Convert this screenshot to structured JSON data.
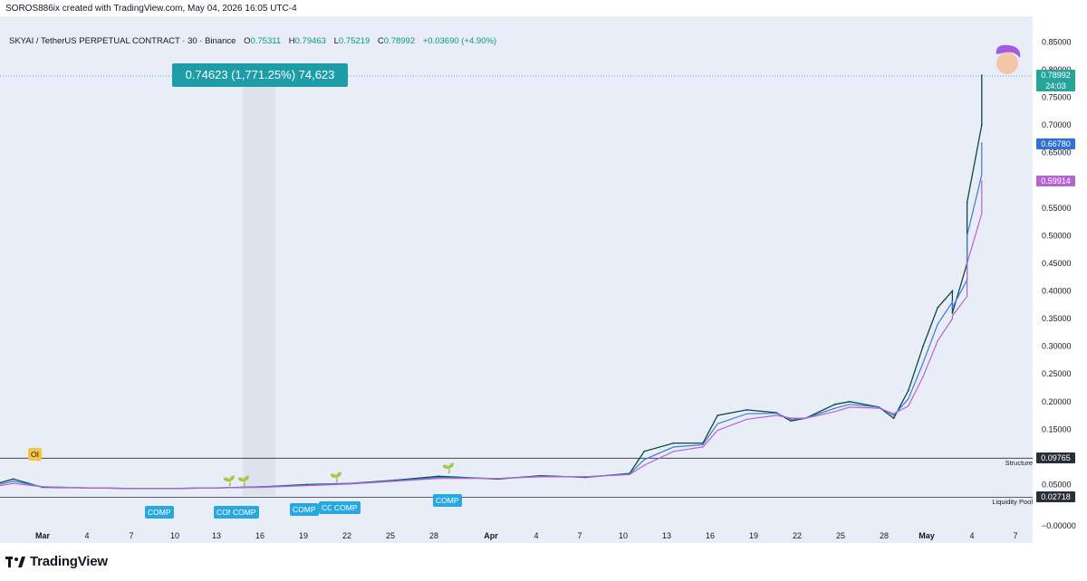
{
  "header": {
    "author_line": "SOROS886ix created with TradingView.com, May 04, 2026 16:05 UTC-4"
  },
  "legend": {
    "symbol": "SKYAI / TetherUS PERPETUAL CONTRACT · 30 · Binance",
    "o_label": "O",
    "o_value": "0.75311",
    "h_label": "H",
    "h_value": "0.79463",
    "l_label": "L",
    "l_value": "0.75219",
    "c_label": "C",
    "c_value": "0.78992",
    "change": "+0.03690 (+4.90%)"
  },
  "measure": {
    "text": "0.74623 (1,771.25%) 74,623"
  },
  "price_tags": {
    "last": "0.78992",
    "countdown": "24:03",
    "ma_fast": "0.66780",
    "ma_slow": "0.59914",
    "structure_value": "0.09765",
    "liquidity_value": "0.02718"
  },
  "horizontal_lines": {
    "structure_label": "Structure",
    "liquidity_label": "Liquidity Pool"
  },
  "badges": {
    "oi": "OI",
    "comp": [
      "COMP",
      "COMP",
      "COMP",
      "COMP",
      "COMP",
      "COMP",
      "COMP"
    ]
  },
  "footer": {
    "brand": "TradingView"
  },
  "colors": {
    "candle": "#0b4a43",
    "ma_fast": "#3d7bd9",
    "ma_slow": "#b565d0",
    "tag_last": "#26a69a",
    "tag_ma_fast": "#2f6fd6",
    "tag_ma_slow": "#b565d0",
    "tag_level": "#2a2e39",
    "measure": "#1e9ca7",
    "comp": "#29a8e0",
    "oi": "#f7c542"
  },
  "chart_data": {
    "type": "line",
    "title": "",
    "xlabel": "",
    "ylabel": "",
    "ylim": [
      0,
      0.88
    ],
    "x_tick_labels": [
      "Mar",
      "4",
      "7",
      "10",
      "13",
      "16",
      "19",
      "22",
      "25",
      "28",
      "Apr",
      "4",
      "7",
      "10",
      "13",
      "16",
      "19",
      "22",
      "25",
      "28",
      "May",
      "4",
      "7"
    ],
    "y_tick_labels": [
      "0.85000",
      "0.80000",
      "0.75000",
      "0.70000",
      "0.65000",
      "0.60000",
      "0.55000",
      "0.50000",
      "0.45000",
      "0.40000",
      "0.35000",
      "0.30000",
      "0.25000",
      "0.20000",
      "0.15000",
      "0.10000",
      "0.05000",
      "0.00000",
      "−0.00000"
    ],
    "y_ticks": [
      0.85,
      0.8,
      0.75,
      0.7,
      0.65,
      0.6,
      0.55,
      0.5,
      0.45,
      0.4,
      0.35,
      0.3,
      0.25,
      0.2,
      0.15,
      0.1,
      0.05,
      0.0
    ],
    "x_dates": [
      "2026-02-25",
      "2026-02-27",
      "2026-03-01",
      "2026-03-04",
      "2026-03-07",
      "2026-03-10",
      "2026-03-13",
      "2026-03-16",
      "2026-03-19",
      "2026-03-22",
      "2026-03-25",
      "2026-03-28",
      "2026-04-01",
      "2026-04-04",
      "2026-04-07",
      "2026-04-10",
      "2026-04-11",
      "2026-04-13",
      "2026-04-15",
      "2026-04-16",
      "2026-04-18",
      "2026-04-20",
      "2026-04-21",
      "2026-04-22",
      "2026-04-24",
      "2026-04-25",
      "2026-04-27",
      "2026-04-28",
      "2026-04-29",
      "2026-04-30",
      "2026-05-01",
      "2026-05-02",
      "2026-05-02",
      "2026-05-03",
      "2026-05-03",
      "2026-05-04",
      "2026-05-04"
    ],
    "series": [
      {
        "name": "",
        "values": [
          0.045,
          0.06,
          0.045,
          0.044,
          0.043,
          0.043,
          0.044,
          0.046,
          0.05,
          0.052,
          0.058,
          0.065,
          0.06,
          0.066,
          0.063,
          0.07,
          0.11,
          0.125,
          0.125,
          0.175,
          0.185,
          0.18,
          0.165,
          0.17,
          0.195,
          0.2,
          0.19,
          0.17,
          0.22,
          0.3,
          0.37,
          0.4,
          0.36,
          0.45,
          0.56,
          0.7,
          0.79
        ]
      },
      {
        "name": "",
        "values": [
          0.044,
          0.056,
          0.046,
          0.044,
          0.043,
          0.043,
          0.044,
          0.046,
          0.049,
          0.052,
          0.057,
          0.063,
          0.061,
          0.065,
          0.064,
          0.069,
          0.095,
          0.118,
          0.122,
          0.16,
          0.178,
          0.179,
          0.168,
          0.17,
          0.188,
          0.195,
          0.19,
          0.175,
          0.205,
          0.27,
          0.34,
          0.38,
          0.37,
          0.42,
          0.5,
          0.61,
          0.668
        ]
      },
      {
        "name": "",
        "values": [
          0.043,
          0.052,
          0.046,
          0.044,
          0.043,
          0.043,
          0.044,
          0.045,
          0.048,
          0.051,
          0.056,
          0.061,
          0.061,
          0.064,
          0.064,
          0.068,
          0.085,
          0.11,
          0.118,
          0.148,
          0.168,
          0.175,
          0.17,
          0.17,
          0.182,
          0.19,
          0.188,
          0.178,
          0.192,
          0.245,
          0.31,
          0.35,
          0.355,
          0.39,
          0.45,
          0.54,
          0.599
        ]
      }
    ],
    "levels": [
      {
        "name": "Structure",
        "value": 0.09765
      },
      {
        "name": "Liquidity Pool",
        "value": 0.02718
      }
    ]
  }
}
